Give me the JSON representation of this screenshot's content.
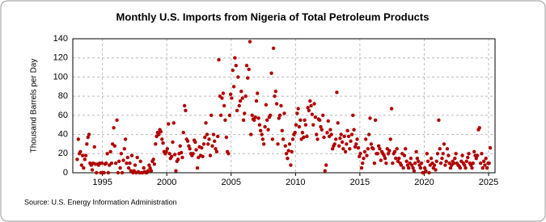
{
  "chart_data": {
    "type": "scatter",
    "title": "Monthly U.S. Imports from Nigeria of Total Petroleum Products",
    "y_label": "Thousand Barrels per Day",
    "source": "Source: U.S. Energy Information Administration",
    "color": "#b00000",
    "grid": true,
    "xlim": [
      1992.7,
      2025.5
    ],
    "xticks": [
      1995,
      2000,
      2005,
      2010,
      2015,
      2020,
      2025
    ],
    "ylim": [
      0,
      140
    ],
    "yticks": [
      0,
      20,
      40,
      60,
      80,
      100,
      120,
      140
    ],
    "x": [
      1993.04,
      1993.13,
      1993.21,
      1993.29,
      1993.38,
      1993.46,
      1993.54,
      1993.63,
      1993.71,
      1993.79,
      1993.88,
      1993.96,
      1994.04,
      1994.13,
      1994.21,
      1994.29,
      1994.38,
      1994.46,
      1994.54,
      1994.63,
      1994.71,
      1994.79,
      1994.88,
      1994.96,
      1995.04,
      1995.13,
      1995.21,
      1995.29,
      1995.38,
      1995.46,
      1995.54,
      1995.63,
      1995.71,
      1995.79,
      1995.88,
      1995.96,
      1996.04,
      1996.13,
      1996.21,
      1996.29,
      1996.38,
      1996.46,
      1996.54,
      1996.63,
      1996.71,
      1996.79,
      1996.88,
      1996.96,
      1997.04,
      1997.13,
      1997.21,
      1997.29,
      1997.38,
      1997.46,
      1997.54,
      1997.63,
      1997.71,
      1997.79,
      1997.88,
      1997.96,
      1998.04,
      1998.13,
      1998.21,
      1998.29,
      1998.38,
      1998.46,
      1998.54,
      1998.63,
      1998.71,
      1998.79,
      1998.88,
      1998.96,
      1999.04,
      1999.13,
      1999.21,
      1999.29,
      1999.38,
      1999.46,
      1999.54,
      1999.63,
      1999.71,
      1999.79,
      1999.88,
      1999.96,
      2000.04,
      2000.13,
      2000.21,
      2000.29,
      2000.38,
      2000.46,
      2000.54,
      2000.63,
      2000.71,
      2000.79,
      2000.88,
      2000.96,
      2001.04,
      2001.13,
      2001.21,
      2001.29,
      2001.38,
      2001.46,
      2001.54,
      2001.63,
      2001.71,
      2001.79,
      2001.88,
      2001.96,
      2002.04,
      2002.13,
      2002.21,
      2002.29,
      2002.38,
      2002.46,
      2002.54,
      2002.63,
      2002.71,
      2002.79,
      2002.88,
      2002.96,
      2003.04,
      2003.13,
      2003.21,
      2003.29,
      2003.38,
      2003.46,
      2003.54,
      2003.63,
      2003.71,
      2003.79,
      2003.88,
      2003.96,
      2004.04,
      2004.13,
      2004.21,
      2004.29,
      2004.38,
      2004.46,
      2004.54,
      2004.63,
      2004.71,
      2004.79,
      2004.88,
      2004.96,
      2005.04,
      2005.13,
      2005.21,
      2005.29,
      2005.38,
      2005.46,
      2005.54,
      2005.63,
      2005.71,
      2005.79,
      2005.88,
      2005.96,
      2006.04,
      2006.13,
      2006.21,
      2006.29,
      2006.38,
      2006.46,
      2006.54,
      2006.63,
      2006.71,
      2006.79,
      2006.88,
      2006.96,
      2007.04,
      2007.13,
      2007.21,
      2007.29,
      2007.38,
      2007.46,
      2007.54,
      2007.63,
      2007.71,
      2007.79,
      2007.88,
      2007.96,
      2008.04,
      2008.13,
      2008.21,
      2008.29,
      2008.38,
      2008.46,
      2008.54,
      2008.63,
      2008.71,
      2008.79,
      2008.88,
      2008.96,
      2009.04,
      2009.13,
      2009.21,
      2009.29,
      2009.38,
      2009.46,
      2009.54,
      2009.63,
      2009.71,
      2009.79,
      2009.88,
      2009.96,
      2010.04,
      2010.13,
      2010.21,
      2010.29,
      2010.38,
      2010.46,
      2010.54,
      2010.63,
      2010.71,
      2010.79,
      2010.88,
      2010.96,
      2011.04,
      2011.13,
      2011.21,
      2011.29,
      2011.38,
      2011.46,
      2011.54,
      2011.63,
      2011.71,
      2011.79,
      2011.88,
      2011.96,
      2012.04,
      2012.13,
      2012.21,
      2012.29,
      2012.38,
      2012.46,
      2012.54,
      2012.63,
      2012.71,
      2012.79,
      2012.88,
      2012.96,
      2013.04,
      2013.13,
      2013.21,
      2013.29,
      2013.38,
      2013.46,
      2013.54,
      2013.63,
      2013.71,
      2013.79,
      2013.88,
      2013.96,
      2014.04,
      2014.13,
      2014.21,
      2014.29,
      2014.38,
      2014.46,
      2014.54,
      2014.63,
      2014.71,
      2014.79,
      2014.88,
      2014.96,
      2015.04,
      2015.13,
      2015.21,
      2015.29,
      2015.38,
      2015.46,
      2015.54,
      2015.63,
      2015.71,
      2015.79,
      2015.88,
      2015.96,
      2016.04,
      2016.13,
      2016.21,
      2016.29,
      2016.38,
      2016.46,
      2016.54,
      2016.63,
      2016.71,
      2016.79,
      2016.88,
      2016.96,
      2017.04,
      2017.13,
      2017.21,
      2017.29,
      2017.38,
      2017.46,
      2017.54,
      2017.63,
      2017.71,
      2017.79,
      2017.88,
      2017.96,
      2018.04,
      2018.13,
      2018.21,
      2018.29,
      2018.38,
      2018.46,
      2018.54,
      2018.63,
      2018.71,
      2018.79,
      2018.88,
      2018.96,
      2019.04,
      2019.13,
      2019.21,
      2019.29,
      2019.38,
      2019.46,
      2019.54,
      2019.63,
      2019.71,
      2019.79,
      2019.88,
      2019.96,
      2020.04,
      2020.13,
      2020.21,
      2020.29,
      2020.38,
      2020.46,
      2020.54,
      2020.63,
      2020.71,
      2020.79,
      2020.88,
      2020.96,
      2021.04,
      2021.13,
      2021.21,
      2021.29,
      2021.38,
      2021.46,
      2021.54,
      2021.63,
      2021.71,
      2021.79,
      2021.88,
      2021.96,
      2022.04,
      2022.13,
      2022.21,
      2022.29,
      2022.38,
      2022.46,
      2022.54,
      2022.63,
      2022.71,
      2022.79,
      2022.88,
      2022.96,
      2023.04,
      2023.13,
      2023.21,
      2023.29,
      2023.38,
      2023.46,
      2023.54,
      2023.63,
      2023.71,
      2023.79,
      2023.88,
      2023.96,
      2024.04,
      2024.13,
      2024.21,
      2024.29,
      2024.38,
      2024.46,
      2024.54,
      2024.63,
      2024.71,
      2024.79,
      2024.88,
      2024.96,
      2025.04,
      2025.13
    ],
    "values": [
      14,
      35,
      20,
      22,
      8,
      18,
      5,
      14,
      18,
      30,
      37,
      40,
      10,
      8,
      3,
      10,
      27,
      9,
      0,
      9,
      8,
      10,
      0,
      10,
      0,
      0,
      9,
      10,
      20,
      0,
      8,
      22,
      10,
      30,
      47,
      28,
      10,
      55,
      0,
      12,
      5,
      20,
      0,
      13,
      25,
      35,
      10,
      16,
      5,
      10,
      2,
      18,
      0,
      2,
      8,
      0,
      16,
      1,
      0,
      12,
      0,
      0,
      5,
      1,
      0,
      0,
      2,
      8,
      5,
      2,
      12,
      14,
      9,
      30,
      38,
      42,
      40,
      45,
      43,
      35,
      31,
      22,
      20,
      22,
      25,
      51,
      20,
      15,
      17,
      32,
      52,
      19,
      2,
      12,
      14,
      20,
      28,
      21,
      16,
      42,
      70,
      65,
      35,
      33,
      28,
      25,
      20,
      18,
      20,
      34,
      32,
      24,
      5,
      16,
      27,
      18,
      26,
      17,
      30,
      37,
      52,
      40,
      30,
      35,
      18,
      60,
      28,
      40,
      33,
      25,
      22,
      38,
      118,
      80,
      60,
      78,
      83,
      70,
      55,
      37,
      22,
      20,
      60,
      82,
      78,
      107,
      90,
      120,
      112,
      65,
      100,
      70,
      75,
      85,
      78,
      55,
      62,
      80,
      112,
      99,
      108,
      137,
      40,
      60,
      56,
      55,
      58,
      75,
      83,
      57,
      50,
      44,
      40,
      35,
      30,
      48,
      71,
      55,
      45,
      58,
      60,
      104,
      35,
      130,
      80,
      85,
      72,
      30,
      57,
      60,
      70,
      44,
      35,
      62,
      28,
      20,
      15,
      23,
      30,
      8,
      22,
      35,
      40,
      42,
      50,
      62,
      67,
      48,
      55,
      35,
      42,
      37,
      55,
      50,
      38,
      68,
      65,
      75,
      70,
      61,
      50,
      72,
      58,
      40,
      35,
      56,
      55,
      48,
      45,
      60,
      37,
      2,
      8,
      42,
      54,
      38,
      45,
      40,
      25,
      28,
      30,
      35,
      84,
      52,
      28,
      36,
      40,
      32,
      25,
      38,
      22,
      30,
      44,
      38,
      25,
      33,
      40,
      60,
      45,
      27,
      30,
      35,
      26,
      17,
      20,
      5,
      10,
      15,
      22,
      35,
      18,
      25,
      40,
      57,
      30,
      26,
      25,
      10,
      55,
      20,
      20,
      28,
      25,
      13,
      22,
      20,
      18,
      15,
      10,
      25,
      20,
      23,
      35,
      67,
      10,
      20,
      22,
      15,
      25,
      12,
      15,
      10,
      8,
      20,
      5,
      18,
      25,
      12,
      8,
      5,
      10,
      15,
      8,
      5,
      2,
      10,
      22,
      15,
      12,
      8,
      5,
      10,
      0,
      0,
      5,
      2,
      20,
      12,
      0,
      8,
      15,
      10,
      5,
      8,
      3,
      12,
      20,
      55,
      25,
      10,
      15,
      20,
      30,
      8,
      12,
      25,
      18,
      10,
      5,
      8,
      12,
      10,
      15,
      20,
      10,
      8,
      7,
      5,
      12,
      18,
      10,
      8,
      5,
      12,
      16,
      20,
      10,
      8,
      5,
      10,
      22,
      18,
      15,
      18,
      45,
      47,
      10,
      20,
      5,
      12,
      8,
      15,
      5,
      10,
      10,
      26
    ]
  }
}
